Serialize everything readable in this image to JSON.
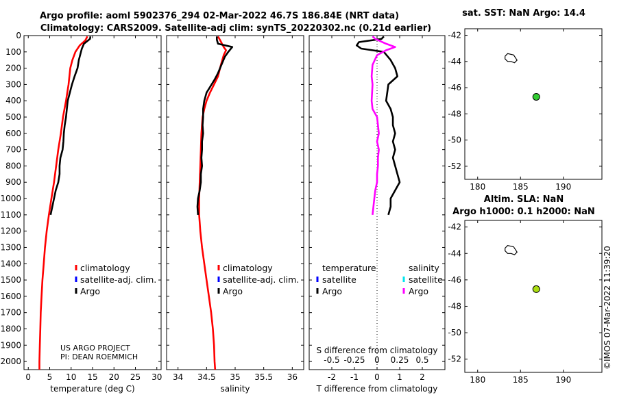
{
  "figure": {
    "title_line1": "Argo profile: aoml 5902376_294 02-Mar-2022 46.7S 186.84E (NRT data)",
    "title_line2": "Climatology: CARS2009. Satellite-adj clim: synTS_20220302.nc (0.21d earlier)",
    "credit_line1": "US ARGO PROJECT",
    "credit_line2": "PI: DEAN ROEMMICH",
    "stamp": "©IMOS 07-Mar-2022 11:39:20"
  },
  "colors": {
    "climatology": "#ff0000",
    "satellite": "#0000ff",
    "argo": "#000000",
    "argo_salinity_diff": "#ff00ff",
    "satellite_salinity": "#00e5ee",
    "float_marker": "#33cc33",
    "float_marker_2": "#aadd11"
  },
  "chart_data": [
    {
      "id": "temperature",
      "type": "line",
      "xlabel": "temperature (deg C)",
      "xlim": [
        -1,
        31
      ],
      "xticks": [
        0,
        5,
        10,
        15,
        20,
        25,
        30
      ],
      "ylim": [
        2050,
        0
      ],
      "yticks": [
        0,
        100,
        200,
        300,
        400,
        500,
        600,
        700,
        800,
        900,
        1000,
        1100,
        1200,
        1300,
        1400,
        1500,
        1600,
        1700,
        1800,
        1900,
        2000
      ],
      "legend": [
        "climatology",
        "satellite-adj. clim.",
        "Argo"
      ],
      "series": [
        {
          "name": "climatology",
          "color_key": "climatology",
          "points": [
            [
              13.8,
              5
            ],
            [
              13.3,
              30
            ],
            [
              12,
              60
            ],
            [
              11,
              100
            ],
            [
              10.3,
              150
            ],
            [
              9.8,
              200
            ],
            [
              9.4,
              300
            ],
            [
              8.8,
              400
            ],
            [
              8.1,
              500
            ],
            [
              7.6,
              600
            ],
            [
              7,
              700
            ],
            [
              6.5,
              800
            ],
            [
              6,
              900
            ],
            [
              5.4,
              1000
            ],
            [
              4.8,
              1100
            ],
            [
              4.3,
              1200
            ],
            [
              3.9,
              1300
            ],
            [
              3.6,
              1400
            ],
            [
              3.3,
              1500
            ],
            [
              3.1,
              1600
            ],
            [
              2.9,
              1700
            ],
            [
              2.8,
              1800
            ],
            [
              2.7,
              1900
            ],
            [
              2.6,
              2000
            ],
            [
              2.6,
              2050
            ]
          ]
        },
        {
          "name": "Argo",
          "color_key": "argo",
          "points": [
            [
              14.5,
              5
            ],
            [
              14.4,
              20
            ],
            [
              13,
              50
            ],
            [
              12.5,
              80
            ],
            [
              12.3,
              100
            ],
            [
              11.8,
              150
            ],
            [
              11.5,
              200
            ],
            [
              10.8,
              250
            ],
            [
              10.2,
              300
            ],
            [
              9.7,
              350
            ],
            [
              9.2,
              400
            ],
            [
              9,
              450
            ],
            [
              8.8,
              500
            ],
            [
              8.5,
              550
            ],
            [
              8.3,
              600
            ],
            [
              8.2,
              650
            ],
            [
              8,
              700
            ],
            [
              7.5,
              750
            ],
            [
              7.3,
              800
            ],
            [
              7.3,
              850
            ],
            [
              7,
              900
            ],
            [
              6.4,
              950
            ],
            [
              6,
              1000
            ],
            [
              5.6,
              1050
            ],
            [
              5.2,
              1100
            ]
          ]
        }
      ]
    },
    {
      "id": "salinity",
      "type": "line",
      "xlabel": "salinity",
      "xlim": [
        33.8,
        36.2
      ],
      "xticks": [
        34,
        34.5,
        35,
        35.5,
        36
      ],
      "xticklabels": [
        "34",
        "34.5",
        "35",
        "35.5",
        "36"
      ],
      "ylim": [
        2050,
        0
      ],
      "legend": [
        "climatology",
        "satellite-adj. clim.",
        "Argo"
      ],
      "series": [
        {
          "name": "climatology",
          "color_key": "climatology",
          "points": [
            [
              34.7,
              5
            ],
            [
              34.74,
              30
            ],
            [
              34.8,
              70
            ],
            [
              34.84,
              90
            ],
            [
              34.8,
              120
            ],
            [
              34.75,
              180
            ],
            [
              34.7,
              250
            ],
            [
              34.63,
              300
            ],
            [
              34.56,
              350
            ],
            [
              34.5,
              400
            ],
            [
              34.46,
              450
            ],
            [
              34.43,
              500
            ],
            [
              34.41,
              600
            ],
            [
              34.4,
              700
            ],
            [
              34.39,
              800
            ],
            [
              34.38,
              900
            ],
            [
              34.37,
              1000
            ],
            [
              34.37,
              1100
            ],
            [
              34.39,
              1200
            ],
            [
              34.42,
              1300
            ],
            [
              34.46,
              1400
            ],
            [
              34.5,
              1500
            ],
            [
              34.54,
              1600
            ],
            [
              34.58,
              1700
            ],
            [
              34.61,
              1800
            ],
            [
              34.63,
              1900
            ],
            [
              34.64,
              2000
            ],
            [
              34.65,
              2050
            ]
          ]
        },
        {
          "name": "Argo",
          "color_key": "argo",
          "points": [
            [
              34.68,
              5
            ],
            [
              34.68,
              25
            ],
            [
              34.7,
              50
            ],
            [
              34.95,
              70
            ],
            [
              34.88,
              100
            ],
            [
              34.82,
              130
            ],
            [
              34.76,
              180
            ],
            [
              34.7,
              230
            ],
            [
              34.64,
              270
            ],
            [
              34.57,
              310
            ],
            [
              34.5,
              350
            ],
            [
              34.46,
              400
            ],
            [
              34.44,
              450
            ],
            [
              34.44,
              500
            ],
            [
              34.43,
              550
            ],
            [
              34.44,
              600
            ],
            [
              34.42,
              650
            ],
            [
              34.42,
              700
            ],
            [
              34.41,
              750
            ],
            [
              34.42,
              800
            ],
            [
              34.4,
              850
            ],
            [
              34.4,
              900
            ],
            [
              34.38,
              950
            ],
            [
              34.35,
              1000
            ],
            [
              34.34,
              1050
            ],
            [
              34.35,
              1100
            ]
          ]
        }
      ]
    },
    {
      "id": "difference",
      "type": "line",
      "xlabel": "T difference from climatology",
      "top_label": "S difference from climatology",
      "xlim": [
        -3,
        3
      ],
      "xticks": [
        -2,
        -1,
        0,
        1,
        2
      ],
      "xticklabels": [
        "-2",
        "-1",
        "0",
        "1",
        "2"
      ],
      "s_ticks": [
        -0.5,
        -0.25,
        0,
        0.25,
        0.5
      ],
      "s_ticklabels": [
        "-0.5",
        "-0.25",
        "0",
        "0.25",
        "0.5"
      ],
      "ylim": [
        2050,
        0
      ],
      "legend_temperature_title": "temperature",
      "legend_salinity_title": "salinity",
      "legend_temperature": [
        "satellite",
        "Argo"
      ],
      "legend_salinity": [
        "satellite",
        "Argo"
      ],
      "series": [
        {
          "name": "T difference (Argo)",
          "color_key": "argo",
          "points": [
            [
              0.3,
              5
            ],
            [
              0.2,
              20
            ],
            [
              -0.8,
              40
            ],
            [
              -0.9,
              60
            ],
            [
              -0.7,
              80
            ],
            [
              0.3,
              100
            ],
            [
              0.6,
              150
            ],
            [
              0.8,
              200
            ],
            [
              0.9,
              250
            ],
            [
              0.5,
              300
            ],
            [
              0.4,
              400
            ],
            [
              0.6,
              450
            ],
            [
              0.7,
              500
            ],
            [
              0.7,
              550
            ],
            [
              0.8,
              600
            ],
            [
              0.7,
              650
            ],
            [
              0.8,
              700
            ],
            [
              0.7,
              750
            ],
            [
              0.8,
              800
            ],
            [
              0.9,
              850
            ],
            [
              1,
              900
            ],
            [
              0.8,
              950
            ],
            [
              0.6,
              1000
            ],
            [
              0.6,
              1050
            ],
            [
              0.5,
              1100
            ]
          ]
        },
        {
          "name": "S difference (Argo)",
          "color_key": "argo_salinity_diff",
          "points": [
            [
              -0.05,
              5
            ],
            [
              -0.02,
              20
            ],
            [
              0.1,
              50
            ],
            [
              0.2,
              70
            ],
            [
              0.1,
              90
            ],
            [
              0,
              120
            ],
            [
              -0.05,
              180
            ],
            [
              -0.06,
              250
            ],
            [
              -0.05,
              300
            ],
            [
              -0.06,
              400
            ],
            [
              -0.05,
              450
            ],
            [
              0,
              500
            ],
            [
              0.01,
              550
            ],
            [
              0.02,
              600
            ],
            [
              0,
              650
            ],
            [
              0.02,
              700
            ],
            [
              0.01,
              750
            ],
            [
              0.01,
              800
            ],
            [
              0,
              850
            ],
            [
              0,
              900
            ],
            [
              -0.02,
              950
            ],
            [
              -0.03,
              1000
            ],
            [
              -0.04,
              1050
            ],
            [
              -0.05,
              1100
            ]
          ]
        }
      ]
    },
    {
      "id": "map_sst",
      "type": "scatter",
      "title": "sat. SST: NaN Argo: 14.4",
      "xlim": [
        178.5,
        194.5
      ],
      "ylim": [
        -53,
        -41.5
      ],
      "xticks": [
        180,
        185,
        190
      ],
      "yticks": [
        -42,
        -44,
        -46,
        -48,
        -50,
        -52
      ],
      "coastline": [
        [
          183.2,
          -43.6
        ],
        [
          183.5,
          -43.4
        ],
        [
          184.2,
          -43.5
        ],
        [
          184.6,
          -43.9
        ],
        [
          184.3,
          -44.1
        ],
        [
          183.9,
          -44
        ],
        [
          183.5,
          -44
        ],
        [
          183.2,
          -43.8
        ],
        [
          183.2,
          -43.6
        ]
      ],
      "float": {
        "lon": 186.84,
        "lat": -46.7,
        "color_key": "float_marker"
      }
    },
    {
      "id": "map_sla",
      "type": "scatter",
      "title": "Altim. SLA: NaN",
      "subtitle": "Argo h1000: 0.1 h2000: NaN",
      "xlim": [
        178.5,
        194.5
      ],
      "ylim": [
        -53,
        -41.5
      ],
      "xticks": [
        180,
        185,
        190
      ],
      "yticks": [
        -42,
        -44,
        -46,
        -48,
        -50,
        -52
      ],
      "coastline": [
        [
          183.2,
          -43.6
        ],
        [
          183.5,
          -43.4
        ],
        [
          184.2,
          -43.5
        ],
        [
          184.6,
          -43.9
        ],
        [
          184.3,
          -44.1
        ],
        [
          183.9,
          -44
        ],
        [
          183.5,
          -44
        ],
        [
          183.2,
          -43.8
        ],
        [
          183.2,
          -43.6
        ]
      ],
      "float": {
        "lon": 186.84,
        "lat": -46.7,
        "color_key": "float_marker_2"
      }
    }
  ]
}
